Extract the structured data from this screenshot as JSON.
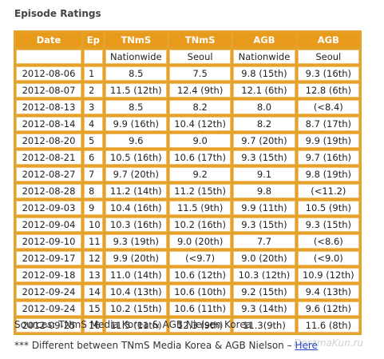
{
  "title": "Episode Ratings",
  "table": {
    "header": [
      "Date",
      "Ep",
      "TNmS",
      "TNmS",
      "AGB",
      "AGB"
    ],
    "subheader": [
      "Nationwide",
      "Seoul",
      "Nationwide",
      "Seoul"
    ],
    "rows": [
      [
        "2012-08-06",
        "1",
        "8.5",
        "7.5",
        "9.8 (15th)",
        "9.3 (16th)"
      ],
      [
        "2012-08-07",
        "2",
        "11.5 (12th)",
        "12.4 (9th)",
        "12.1 (6th)",
        "12.8 (6th)"
      ],
      [
        "2012-08-13",
        "3",
        "8.5",
        "8.2",
        "8.0",
        "(<8.4)"
      ],
      [
        "2012-08-14",
        "4",
        "9.9 (16th)",
        "10.4 (12th)",
        "8.2",
        "8.7 (17th)"
      ],
      [
        "2012-08-20",
        "5",
        "9.6",
        "9.0",
        "9.7 (20th)",
        "9.9 (19th)"
      ],
      [
        "2012-08-21",
        "6",
        "10.5 (16th)",
        "10.6 (17th)",
        "9.3 (15th)",
        "9.7 (16th)"
      ],
      [
        "2012-08-27",
        "7",
        "9.7 (20th)",
        "9.2",
        "9.1",
        "9.8 (19th)"
      ],
      [
        "2012-08-28",
        "8",
        "11.2 (14th)",
        "11.2 (15th)",
        "9.8",
        "(<11.2)"
      ],
      [
        "2012-09-03",
        "9",
        "10.4 (16th)",
        "11.5 (9th)",
        "9.9 (11th)",
        "10.5 (9th)"
      ],
      [
        "2012-09-04",
        "10",
        "10.3 (16th)",
        "10.2 (16th)",
        "9.3 (15th)",
        "9.3 (15th)"
      ],
      [
        "2012-09-10",
        "11",
        "9.3 (19th)",
        "9.0 (20th)",
        "7.7",
        "(<8.6)"
      ],
      [
        "2012-09-17",
        "12",
        "9.9 (20th)",
        "(<9.7)",
        "9.0 (20th)",
        "(<9.0)"
      ],
      [
        "2012-09-18",
        "13",
        "11.0 (14th)",
        "10.6 (12th)",
        "10.3 (12th)",
        "10.9 (12th)"
      ],
      [
        "2012-09-24",
        "14",
        "10.4 (13th)",
        "10.6 (10th)",
        "9.2 (15th)",
        "9.4 (13th)"
      ],
      [
        "2012-09-24",
        "15",
        "10.2 (15th)",
        "10.6 (11th)",
        "9.3 (14th)",
        "9.6 (12th)"
      ],
      [
        "2012-09-25",
        "16",
        "11.5 (11th)",
        "12.3 (9th)",
        "11.3(9th)",
        "11.6 (8th)"
      ]
    ]
  },
  "notes": {
    "sources": "Sources: TNmS Media Korea & AGB Nielsen Korea",
    "difference": "*** Different between TNmS Media Korea & AGB Nielson –",
    "link": "Here"
  },
  "watermark": "DoramaKun.ru"
}
